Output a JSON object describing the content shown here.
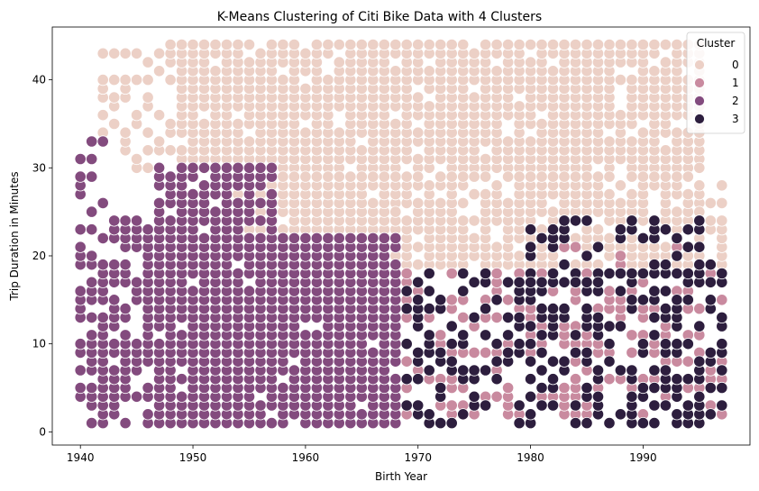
{
  "chart_data": {
    "type": "scatter",
    "title": "K-Means Clustering of Citi Bike Data with 4 Clusters",
    "xlabel": "Birth Year",
    "ylabel": "Trip Duration in Minutes",
    "xlim": [
      1937.5,
      1999.5
    ],
    "ylim": [
      -1.5,
      46
    ],
    "x_ticks": [
      1940,
      1950,
      1960,
      1970,
      1980,
      1990
    ],
    "y_ticks": [
      0,
      10,
      20,
      30,
      40
    ],
    "grid": false,
    "legend": {
      "title": "Cluster",
      "placement": "top-right",
      "entries": [
        "0",
        "1",
        "2",
        "3"
      ]
    },
    "series": [
      {
        "name": "0",
        "color": "#ecd0c6",
        "regions": [
          {
            "x_range": [
              1949,
              1995
            ],
            "y_range": [
              30,
              44
            ],
            "density": 0.92
          },
          {
            "x_range": [
              1953,
              1968
            ],
            "y_range": [
              23,
              29
            ],
            "density": 0.9
          },
          {
            "x_range": [
              1968,
              1995
            ],
            "y_range": [
              19,
              29
            ],
            "density": 0.85
          },
          {
            "x_range": [
              1995,
              1997
            ],
            "y_range": [
              19,
              30
            ],
            "density": 0.5
          },
          {
            "x_range": [
              1944,
              1948
            ],
            "y_range": [
              30,
              44
            ],
            "density": 0.45
          },
          {
            "x_range": [
              1942,
              1943
            ],
            "y_range": [
              34,
              44
            ],
            "density": 0.35
          }
        ]
      },
      {
        "name": "1",
        "color": "#c98a9f",
        "regions": [
          {
            "x_range": [
              1968,
              1997
            ],
            "y_range": [
              2,
              18
            ],
            "density": 0.45
          },
          {
            "x_range": [
              1982,
              1996
            ],
            "y_range": [
              19,
              24
            ],
            "density": 0.15
          }
        ]
      },
      {
        "name": "2",
        "color": "#834b7e",
        "regions": [
          {
            "x_range": [
              1947,
              1968
            ],
            "y_range": [
              1,
              22
            ],
            "density": 0.97
          },
          {
            "x_range": [
              1947,
              1957
            ],
            "y_range": [
              22,
              30
            ],
            "density": 0.9
          },
          {
            "x_range": [
              1940,
              1946
            ],
            "y_range": [
              1,
              24
            ],
            "density": 0.75
          },
          {
            "x_range": [
              1940,
              1942
            ],
            "y_range": [
              25,
              33
            ],
            "density": 0.45
          }
        ]
      },
      {
        "name": "3",
        "color": "#2d1e3e",
        "regions": [
          {
            "x_range": [
              1969,
              1997
            ],
            "y_range": [
              1,
              18
            ],
            "density": 0.42
          },
          {
            "x_range": [
              1980,
              1996
            ],
            "y_range": [
              17,
              24
            ],
            "density": 0.35
          }
        ]
      }
    ]
  }
}
